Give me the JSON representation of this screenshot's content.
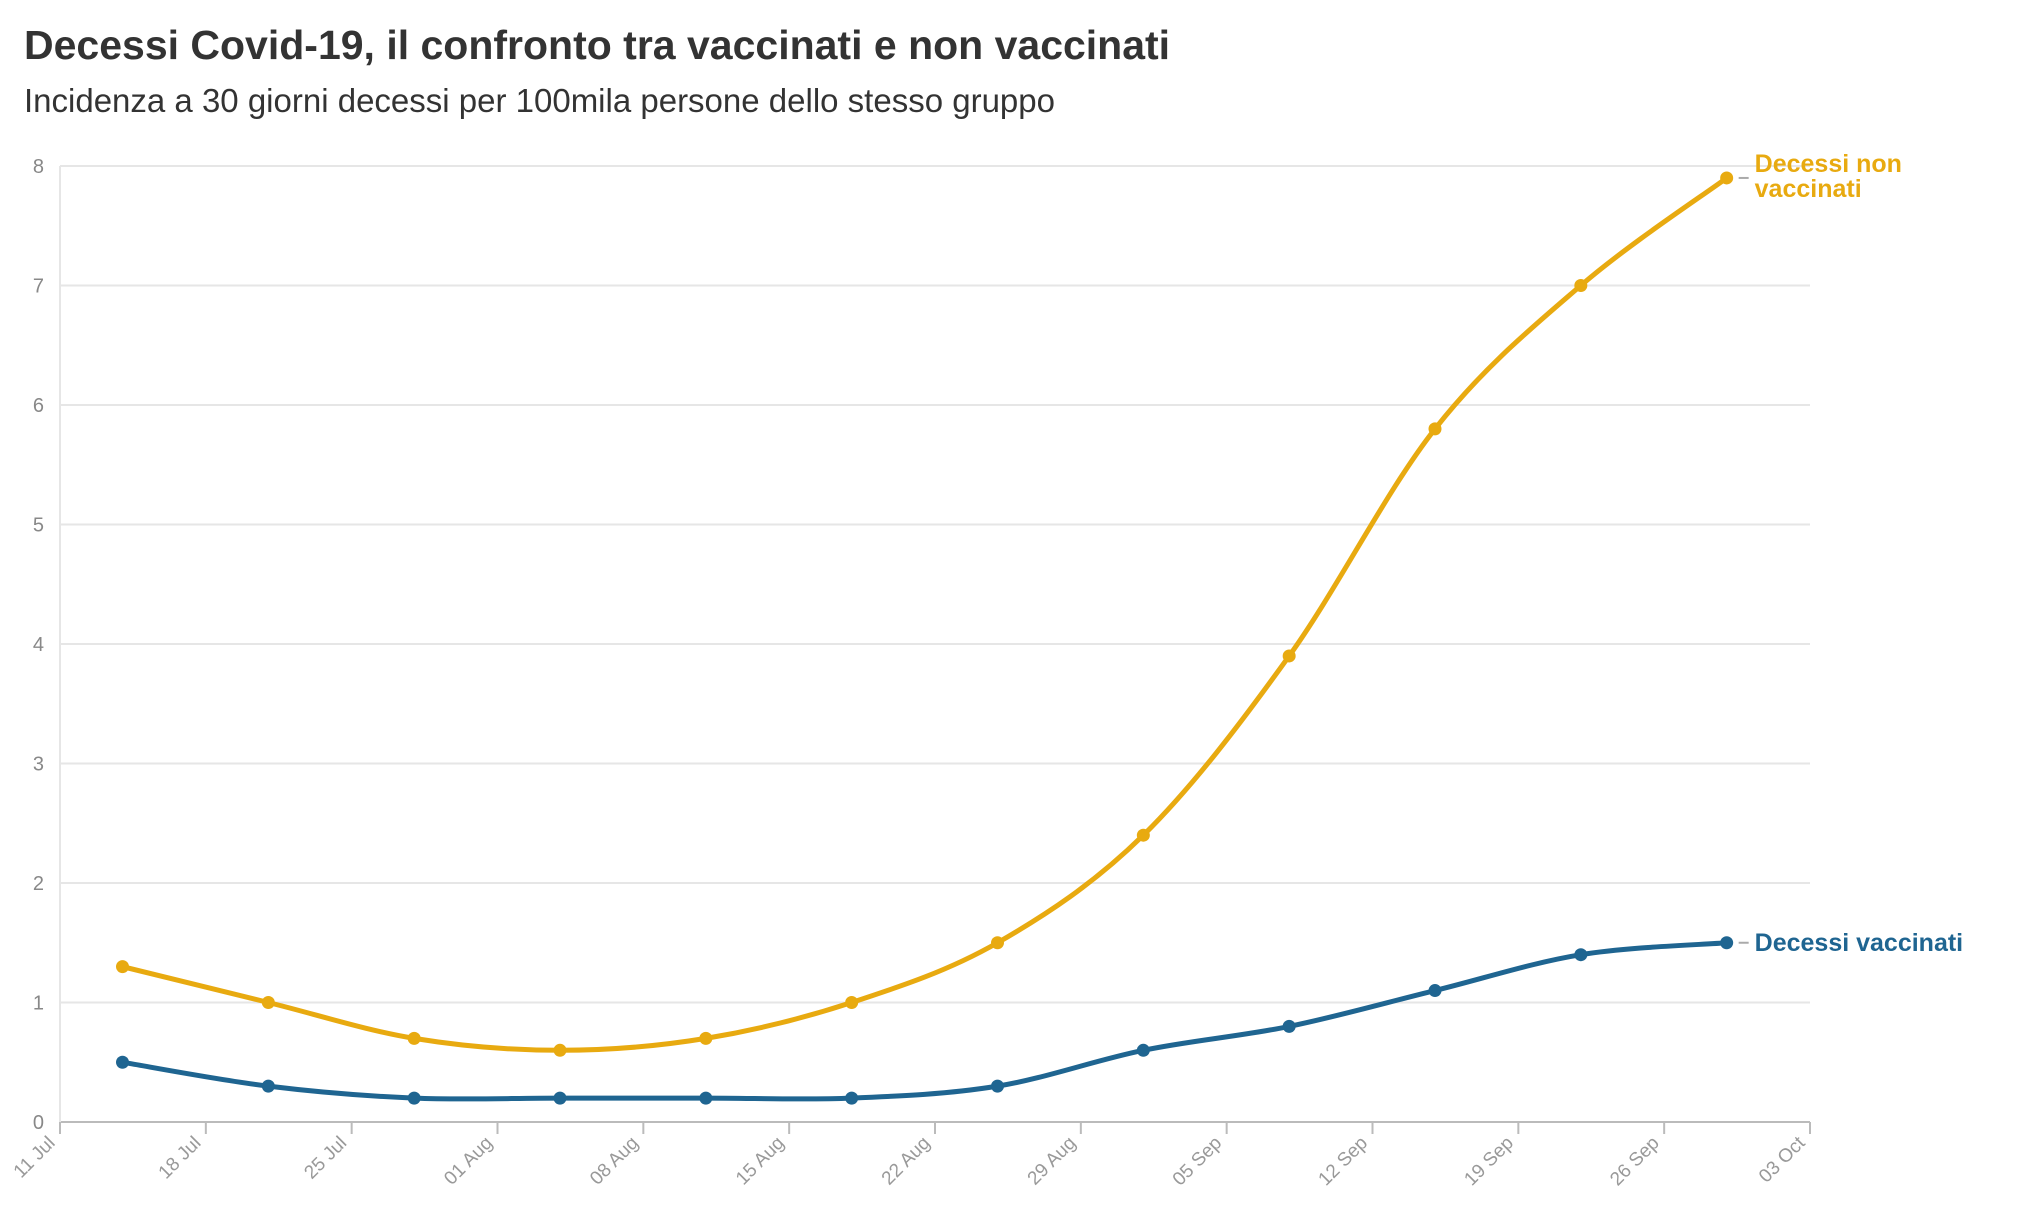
{
  "title": "Decessi Covid-19, il confronto tra vaccinati e non vaccinati",
  "subtitle": "Incidenza a 30 giorni decessi per 100mila persone dello stesso gruppo",
  "chart_data": {
    "type": "line",
    "title": "Decessi Covid-19, il confronto tra vaccinati e non vaccinati",
    "subtitle": "Incidenza a 30 giorni decessi per 100mila persone dello stesso gruppo",
    "xlabel": "",
    "ylabel": "",
    "x_ticks": [
      "11 Jul",
      "18 Jul",
      "25 Jul",
      "01 Aug",
      "08 Aug",
      "15 Aug",
      "22 Aug",
      "29 Aug",
      "05 Sep",
      "12 Sep",
      "19 Sep",
      "26 Sep",
      "03 Oct"
    ],
    "y_ticks": [
      0,
      1,
      2,
      3,
      4,
      5,
      6,
      7,
      8
    ],
    "ylim": [
      0,
      8
    ],
    "xlim": [
      "2021-07-11",
      "2021-10-03"
    ],
    "grid": true,
    "legend": "inline labels at line ends",
    "x": [
      "2021-07-14",
      "2021-07-21",
      "2021-07-28",
      "2021-08-04",
      "2021-08-11",
      "2021-08-18",
      "2021-08-25",
      "2021-09-01",
      "2021-09-08",
      "2021-09-15",
      "2021-09-22",
      "2021-09-29"
    ],
    "series": [
      {
        "name": "Decessi non vaccinati",
        "label_lines": [
          "Decessi non",
          "vaccinati"
        ],
        "color": "#e8aa10",
        "values": [
          1.3,
          1.0,
          0.7,
          0.6,
          0.7,
          1.0,
          1.5,
          2.4,
          3.9,
          5.8,
          7.0,
          7.9
        ]
      },
      {
        "name": "Decessi vaccinati",
        "label_lines": [
          "Decessi vaccinati"
        ],
        "color": "#1f6591",
        "values": [
          0.5,
          0.3,
          0.2,
          0.2,
          0.2,
          0.2,
          0.3,
          0.6,
          0.8,
          1.1,
          1.4,
          1.5
        ]
      }
    ]
  }
}
